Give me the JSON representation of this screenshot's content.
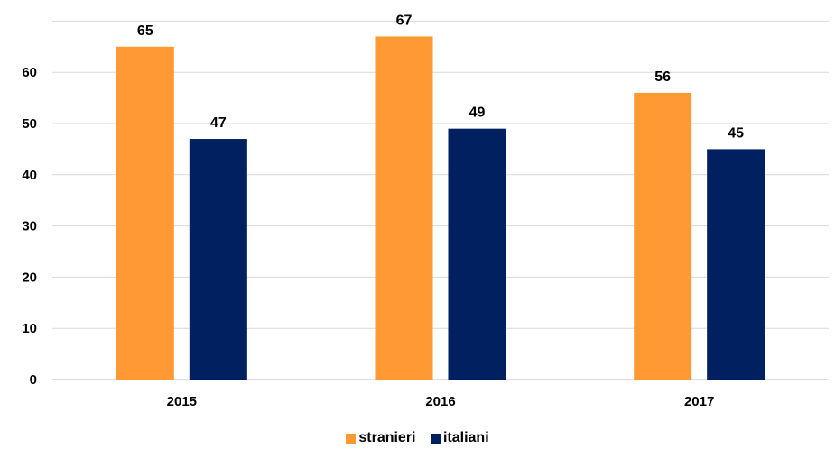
{
  "chart_data": {
    "type": "bar",
    "categories": [
      "2015",
      "2016",
      "2017"
    ],
    "series": [
      {
        "name": "stranieri",
        "values": [
          65,
          67,
          56
        ],
        "color": "#FF9933"
      },
      {
        "name": "italiani",
        "values": [
          47,
          49,
          45
        ],
        "color": "#002060"
      }
    ],
    "ylim": [
      0,
      70
    ],
    "yticks": [
      0,
      10,
      20,
      30,
      40,
      50,
      60
    ],
    "grid": true,
    "legend_position": "bottom"
  }
}
